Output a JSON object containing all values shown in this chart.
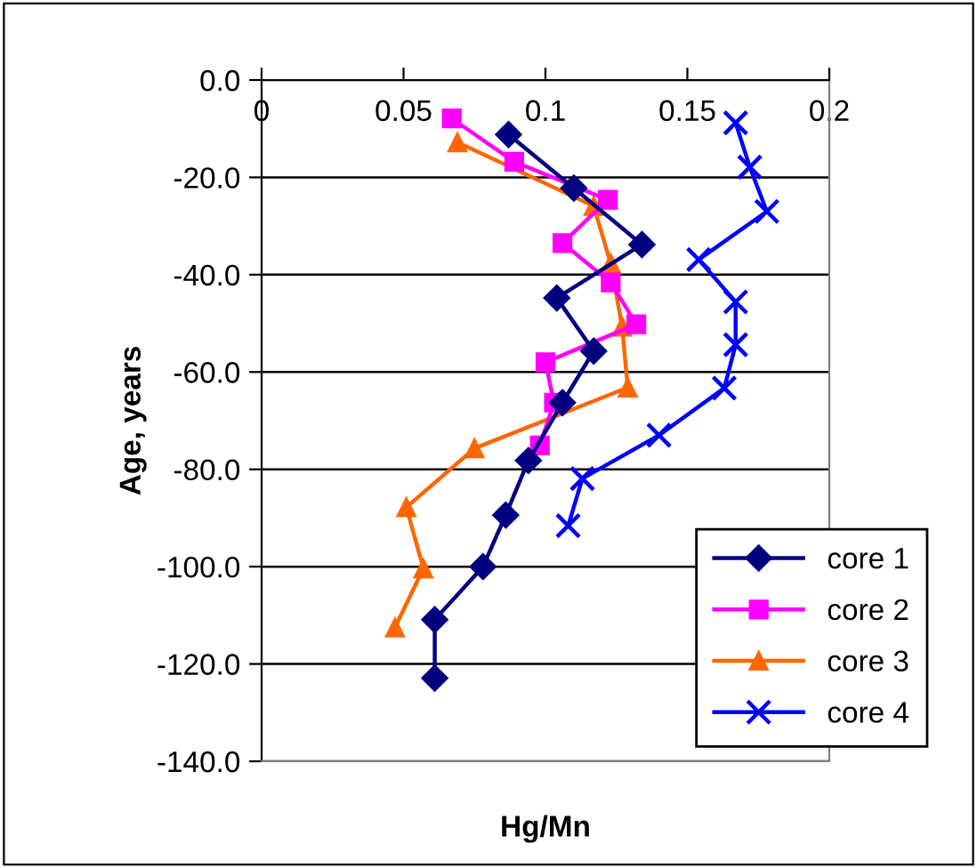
{
  "chart_data": {
    "type": "line",
    "xlabel": "Hg/Mn",
    "ylabel": "Age, years",
    "xlim": [
      0,
      0.2
    ],
    "xticks": [
      0,
      0.05,
      0.1,
      0.15,
      0.2
    ],
    "ylim": [
      -140,
      0
    ],
    "yticks": [
      {
        "value": 0,
        "label": "0.0"
      },
      {
        "value": -20,
        "label": "-20.0"
      },
      {
        "value": -40,
        "label": "-40.0"
      },
      {
        "value": -60,
        "label": "-60.0"
      },
      {
        "value": -80,
        "label": "-80.0"
      },
      {
        "value": -100,
        "label": "-100.0"
      },
      {
        "value": -120,
        "label": "-120.0"
      },
      {
        "value": -140,
        "label": "-140.0"
      }
    ],
    "grid": "y",
    "legend": "bottom right",
    "series": [
      {
        "name": "core 1",
        "color": "#000080",
        "marker": "diamond",
        "x": [
          0.087,
          0.11,
          0.134,
          0.104,
          0.117,
          0.106,
          0.094,
          0.086,
          0.078,
          0.061,
          0.061
        ],
        "values": [
          -11.2,
          -22.2,
          -33.8,
          -44.8,
          -55.7,
          -66.3,
          -78.2,
          -89.4,
          -100,
          -110.9,
          -122.9
        ]
      },
      {
        "name": "core 2",
        "color": "#ff00ff",
        "marker": "square",
        "x": [
          0.067,
          0.089,
          0.122,
          0.106,
          0.123,
          0.132,
          0.1,
          0.103,
          0.098
        ],
        "values": [
          -7.9,
          -16.8,
          -24.6,
          -33.5,
          -41.6,
          -50.2,
          -58.0,
          -66.3,
          -75.1
        ]
      },
      {
        "name": "core 3",
        "color": "#ff6600",
        "marker": "triangle",
        "x": [
          0.069,
          0.117,
          0.123,
          0.127,
          0.129,
          0.075,
          0.051,
          0.057,
          0.047
        ],
        "values": [
          -12.8,
          -25.9,
          -37.7,
          -50.7,
          -63.2,
          -75.7,
          -87.8,
          -100.4,
          -112.5
        ]
      },
      {
        "name": "core 4",
        "color": "#0000ff",
        "marker": "cross",
        "x": [
          0.167,
          0.172,
          0.178,
          0.154,
          0.167,
          0.167,
          0.163,
          0.14,
          0.113,
          0.108
        ],
        "values": [
          -8.8,
          -17.9,
          -27.0,
          -36.9,
          -45.6,
          -54.4,
          -63.3,
          -73.0,
          -81.9,
          -91.6
        ]
      }
    ]
  }
}
